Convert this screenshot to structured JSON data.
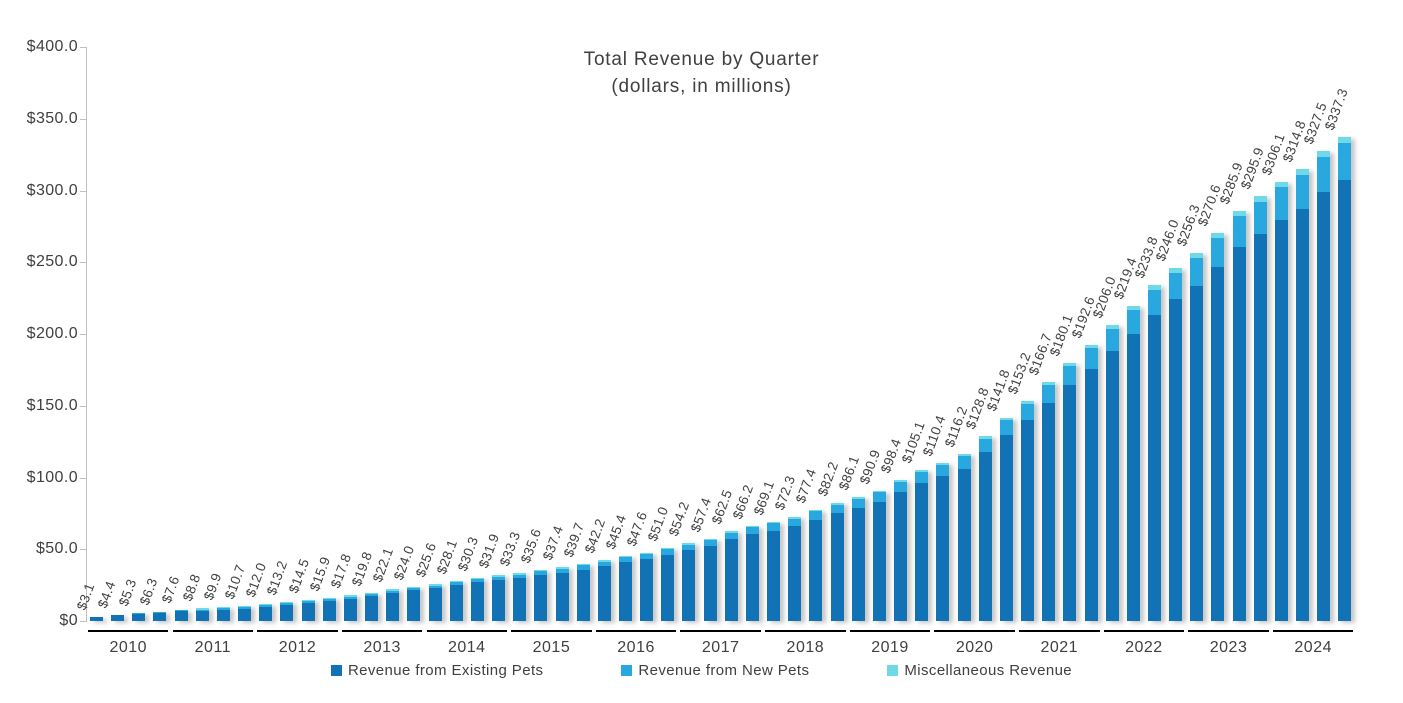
{
  "chart_data": {
    "type": "bar",
    "stacked": true,
    "title": "Total Revenue by Quarter",
    "subtitle": "(dollars, in millions)",
    "xlabel": "",
    "ylabel": "",
    "ylim": [
      0,
      400
    ],
    "grid": false,
    "legend_position": "bottom",
    "y_ticks": [
      {
        "label": "$400.0",
        "value": 400
      },
      {
        "label": "$350.0",
        "value": 350
      },
      {
        "label": "$300.0",
        "value": 300
      },
      {
        "label": "$250.0",
        "value": 250
      },
      {
        "label": "$200.0",
        "value": 200
      },
      {
        "label": "$150.0",
        "value": 150
      },
      {
        "label": "$100.0",
        "value": 100
      },
      {
        "label": "$50.0",
        "value": 50
      },
      {
        "label": "$0",
        "value": 0
      }
    ],
    "years": [
      "2010",
      "2011",
      "2012",
      "2013",
      "2014",
      "2015",
      "2016",
      "2017",
      "2018",
      "2019",
      "2020",
      "2021",
      "2022",
      "2023",
      "2024"
    ],
    "quarterly_totals": {
      "2010": [
        3.1,
        4.4,
        5.3,
        6.3
      ],
      "2011": [
        7.6,
        8.8,
        9.9,
        10.7
      ],
      "2012": [
        12.0,
        13.2,
        14.5,
        15.9
      ],
      "2013": [
        17.8,
        19.8,
        22.1,
        24.0
      ],
      "2014": [
        25.6,
        28.1,
        30.3,
        31.9
      ],
      "2015": [
        33.3,
        35.6,
        37.4,
        39.7
      ],
      "2016": [
        42.2,
        45.4,
        47.6,
        51.0
      ],
      "2017": [
        54.2,
        57.4,
        62.5,
        66.2
      ],
      "2018": [
        69.1,
        72.3,
        77.4,
        82.2
      ],
      "2019": [
        86.1,
        90.9,
        98.4,
        105.1
      ],
      "2020": [
        110.4,
        116.2,
        128.8,
        141.8
      ],
      "2021": [
        153.2,
        166.7,
        180.1,
        192.6
      ],
      "2022": [
        206.0,
        219.4,
        233.8,
        246.0
      ],
      "2023": [
        256.3,
        270.6,
        285.9,
        295.9
      ],
      "2024": [
        306.1,
        314.8,
        327.5,
        337.3
      ]
    },
    "bar_labels": [
      "$3.1",
      "$4.4",
      "$5.3",
      "$6.3",
      "$7.6",
      "$8.8",
      "$9.9",
      "$10.7",
      "$12.0",
      "$13.2",
      "$14.5",
      "$15.9",
      "$17.8",
      "$19.8",
      "$22.1",
      "$24.0",
      "$25.6",
      "$28.1",
      "$30.3",
      "$31.9",
      "$33.3",
      "$35.6",
      "$37.4",
      "$39.7",
      "$42.2",
      "$45.4",
      "$47.6",
      "$51.0",
      "$54.2",
      "$57.4",
      "$62.5",
      "$66.2",
      "$69.1",
      "$72.3",
      "$77.4",
      "$82.2",
      "$86.1",
      "$90.9",
      "$98.4",
      "$105.1",
      "$110.4",
      "$116.2",
      "$128.8",
      "$141.8",
      "$153.2",
      "$166.7",
      "$180.1",
      "$192.6",
      "$206.0",
      "$219.4",
      "$233.8",
      "$246.0",
      "$256.3",
      "$270.6",
      "$285.9",
      "$295.9",
      "$306.1",
      "$314.8",
      "$327.5",
      "$337.3"
    ],
    "series": [
      {
        "key": "existing",
        "name": "Revenue from Existing Pets",
        "color": "#1272B6",
        "estimated_fraction_of_total": 0.912
      },
      {
        "key": "new",
        "name": "Revenue from New Pets",
        "color": "#29A8E0",
        "estimated_fraction_of_total": 0.075
      },
      {
        "key": "misc",
        "name": "Miscellaneous Revenue",
        "color": "#6FD9E7",
        "estimated_fraction_of_total": 0.013
      }
    ]
  }
}
